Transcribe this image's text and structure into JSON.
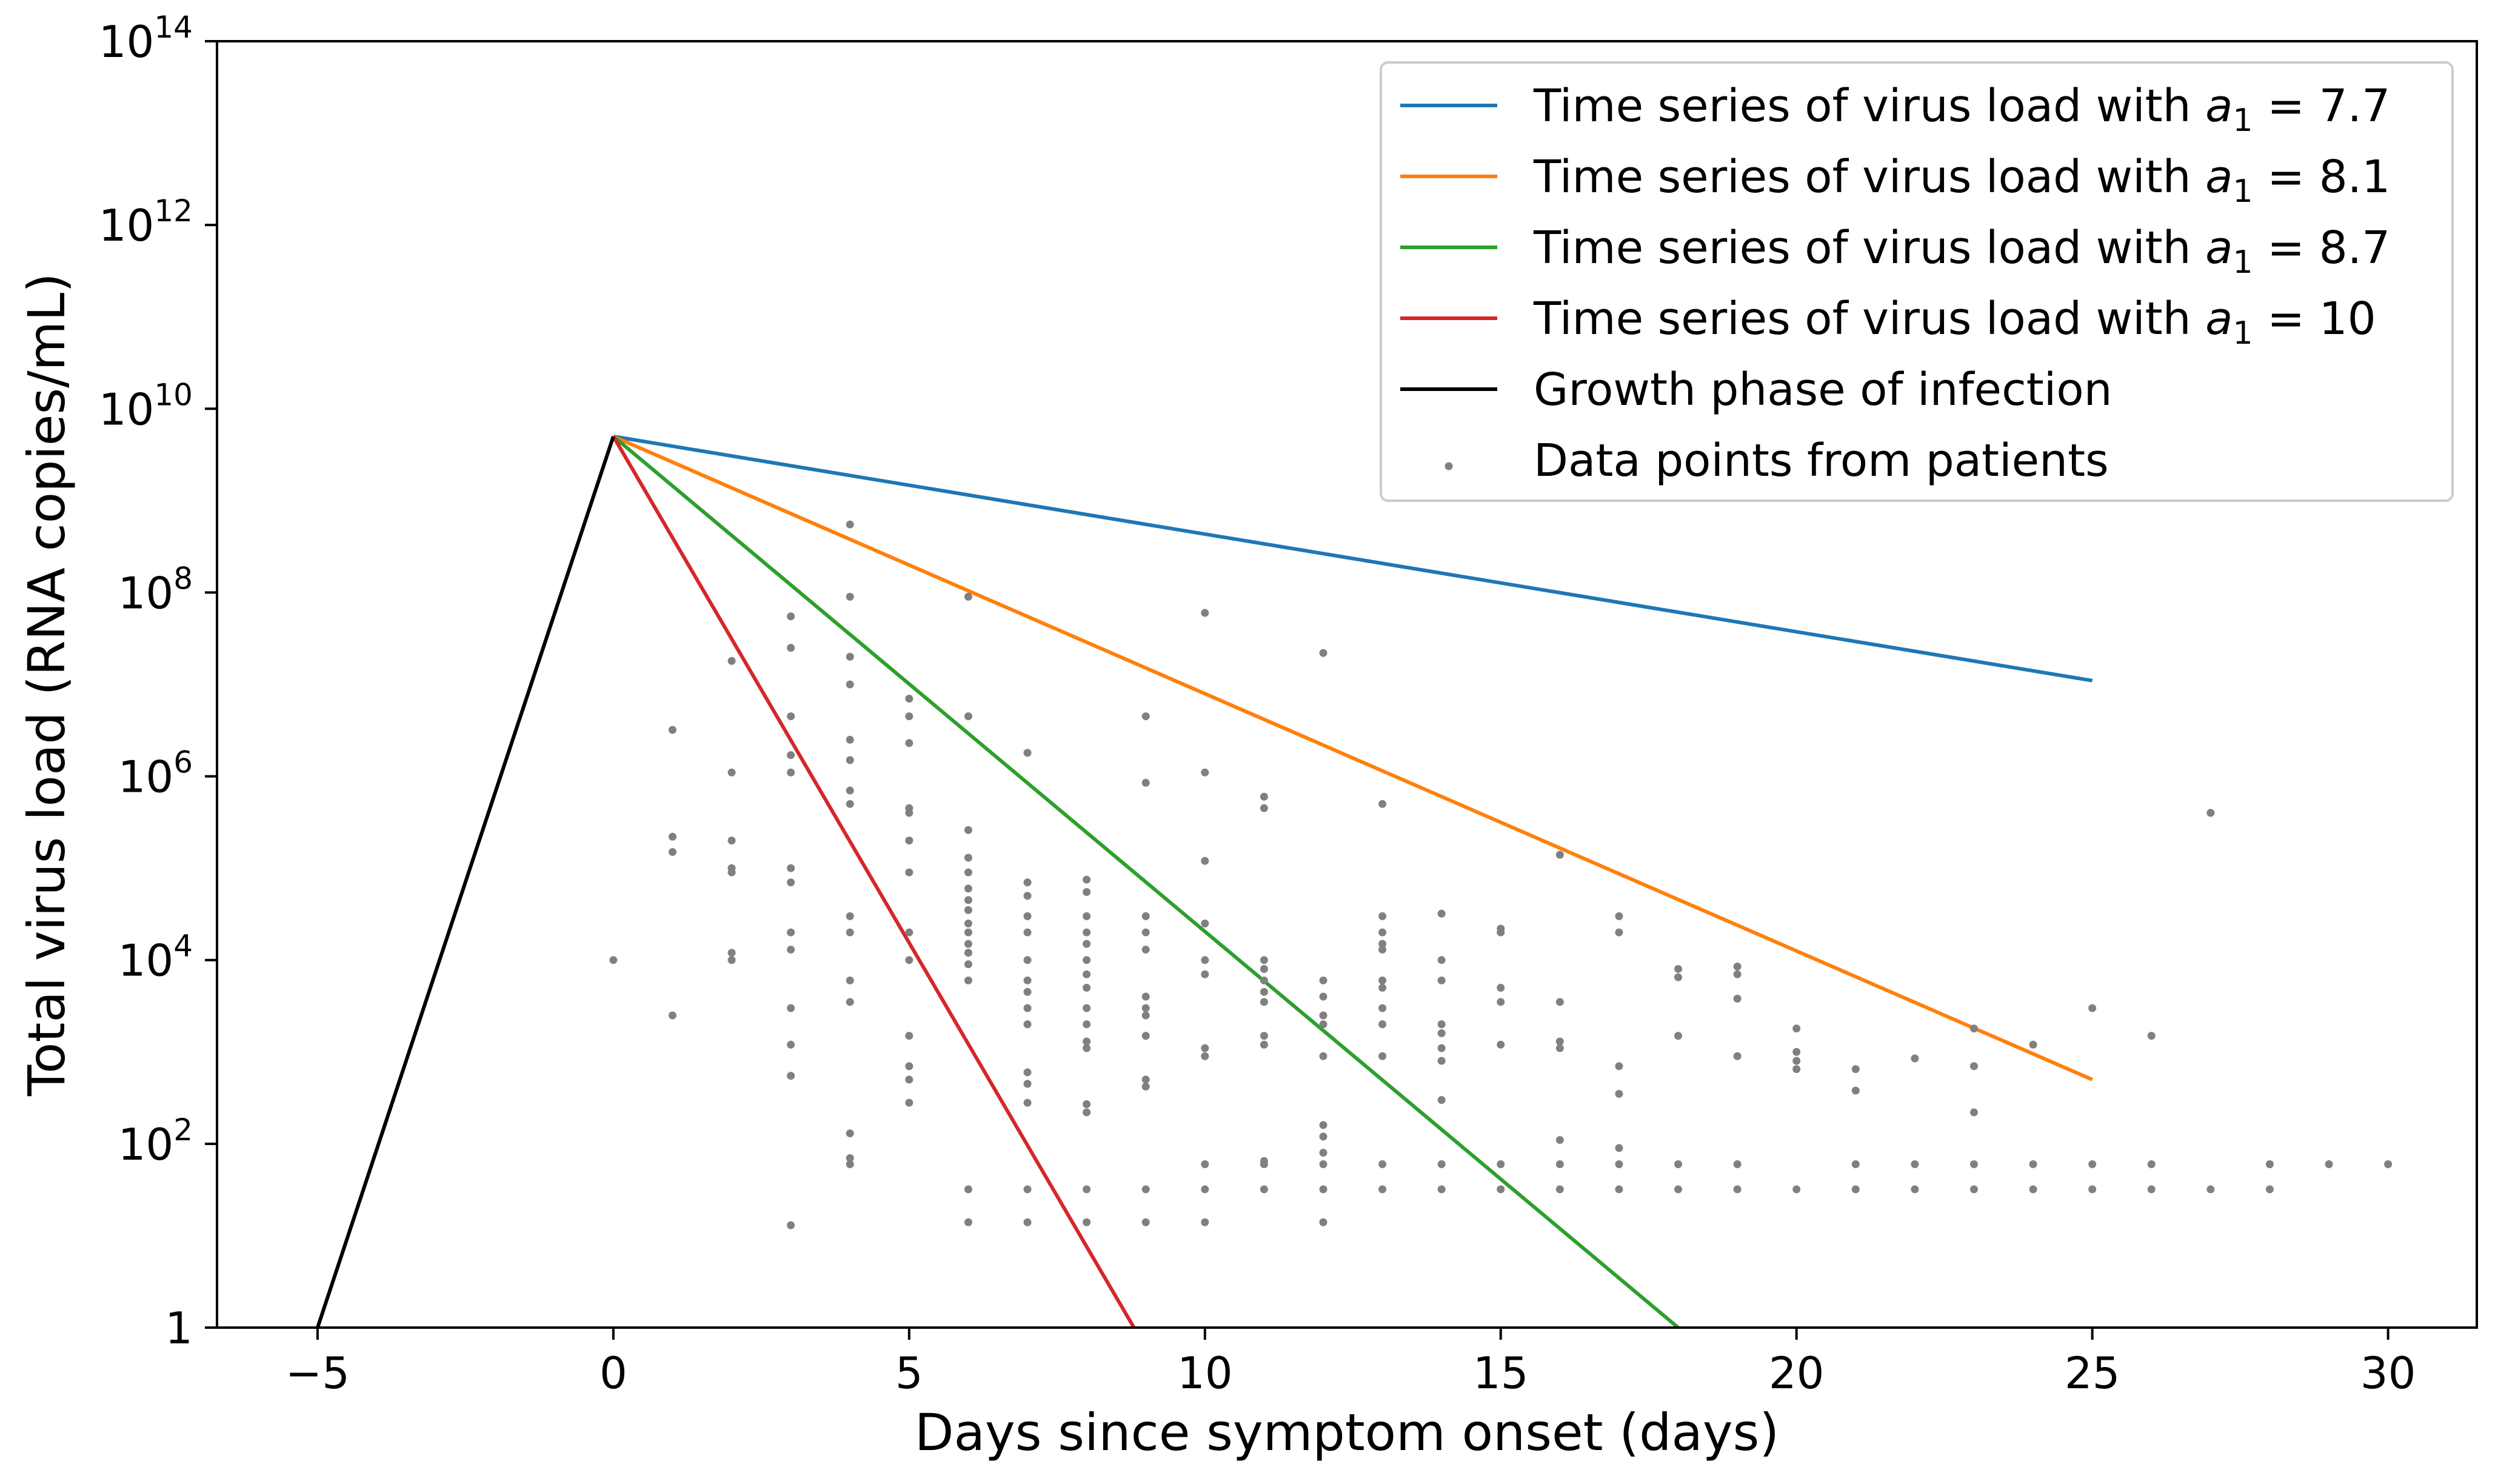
{
  "chart_data": {
    "type": "line",
    "title": "",
    "xlabel": "Days since symptom onset (days)",
    "ylabel": "Total virus load (RNA copies/mL)",
    "xlim": [
      -6.7,
      31.5
    ],
    "ylim": [
      1,
      100000000000000.0
    ],
    "yscale": "log",
    "grid": false,
    "legend_position": "top-right",
    "xticks": [
      -5,
      0,
      5,
      10,
      15,
      20,
      25,
      30
    ],
    "xtick_labels": [
      "−5",
      "0",
      "5",
      "10",
      "15",
      "20",
      "25",
      "30"
    ],
    "ytick_labels": [
      {
        "base": "1",
        "exp": ""
      },
      {
        "base": "10",
        "exp": "2"
      },
      {
        "base": "10",
        "exp": "4"
      },
      {
        "base": "10",
        "exp": "6"
      },
      {
        "base": "10",
        "exp": "8"
      },
      {
        "base": "10",
        "exp": "10"
      },
      {
        "base": "10",
        "exp": "12"
      },
      {
        "base": "10",
        "exp": "14"
      }
    ],
    "series": [
      {
        "name": "Time series of virus load with a1 = 7.7",
        "label_prefix": "Time series of virus load with ",
        "label_var": "a",
        "label_sub": "1",
        "label_suffix": " = 7.7",
        "color": "#1f77b4",
        "kind": "line",
        "x": [
          0,
          25
        ],
        "y": [
          5000000000.0,
          11000000.0
        ]
      },
      {
        "name": "Time series of virus load with a1 = 8.1",
        "label_prefix": "Time series of virus load with ",
        "label_var": "a",
        "label_sub": "1",
        "label_suffix": " = 8.1",
        "color": "#ff7f0e",
        "kind": "line",
        "x": [
          0,
          25
        ],
        "y": [
          5000000000.0,
          500
        ]
      },
      {
        "name": "Time series of virus load with a1 = 8.7",
        "label_prefix": "Time series of virus load with ",
        "label_var": "a",
        "label_sub": "1",
        "label_suffix": " = 8.7",
        "color": "#2ca02c",
        "kind": "line",
        "x": [
          0,
          18
        ],
        "y": [
          5000000000.0,
          1
        ]
      },
      {
        "name": "Time series of virus load with a1 = 10",
        "label_prefix": "Time series of virus load with ",
        "label_var": "a",
        "label_sub": "1",
        "label_suffix": " = 10",
        "color": "#d62728",
        "kind": "line",
        "x": [
          0,
          8.8
        ],
        "y": [
          5000000000.0,
          1
        ]
      },
      {
        "name": "Growth phase of infection",
        "label_prefix": "Growth phase of infection",
        "label_var": "",
        "label_sub": "",
        "label_suffix": "",
        "color": "#000000",
        "kind": "line",
        "x": [
          -5,
          0
        ],
        "y": [
          1,
          5000000000.0
        ]
      },
      {
        "name": "Data points from patients",
        "label_prefix": "Data points from patients",
        "label_var": "",
        "label_sub": "",
        "label_suffix": "",
        "color": "#808080",
        "kind": "scatter",
        "points": [
          [
            0,
            10000
          ],
          [
            1,
            3200000
          ],
          [
            1,
            220000
          ],
          [
            1,
            150000
          ],
          [
            1,
            2500
          ],
          [
            2,
            18000000
          ],
          [
            2,
            1100000
          ],
          [
            2,
            200000
          ],
          [
            2,
            100000
          ],
          [
            2,
            90000
          ],
          [
            2,
            12000
          ],
          [
            2,
            10000
          ],
          [
            3,
            55000000
          ],
          [
            3,
            25000000
          ],
          [
            3,
            4500000
          ],
          [
            3,
            1700000
          ],
          [
            3,
            1100000
          ],
          [
            3,
            100000
          ],
          [
            3,
            70000
          ],
          [
            3,
            20000
          ],
          [
            3,
            13000
          ],
          [
            3,
            3000
          ],
          [
            3,
            1200
          ],
          [
            3,
            550
          ],
          [
            3,
            13
          ],
          [
            4,
            550000000
          ],
          [
            4,
            90000000
          ],
          [
            4,
            20000000
          ],
          [
            4,
            10000000
          ],
          [
            4,
            2500000
          ],
          [
            4,
            1500000
          ],
          [
            4,
            700000
          ],
          [
            4,
            500000
          ],
          [
            4,
            30000
          ],
          [
            4,
            20000
          ],
          [
            4,
            6000
          ],
          [
            4,
            3500
          ],
          [
            4,
            130
          ],
          [
            4,
            70
          ],
          [
            4,
            60
          ],
          [
            5,
            7000000
          ],
          [
            5,
            4500000
          ],
          [
            5,
            2300000
          ],
          [
            5,
            450000
          ],
          [
            5,
            400000
          ],
          [
            5,
            200000
          ],
          [
            5,
            90000
          ],
          [
            5,
            20000
          ],
          [
            5,
            10000
          ],
          [
            5,
            1500
          ],
          [
            5,
            700
          ],
          [
            5,
            500
          ],
          [
            5,
            280
          ],
          [
            6,
            90000000
          ],
          [
            6,
            4500000
          ],
          [
            6,
            260000
          ],
          [
            6,
            130000
          ],
          [
            6,
            90000
          ],
          [
            6,
            60000
          ],
          [
            6,
            45000
          ],
          [
            6,
            35000
          ],
          [
            6,
            25000
          ],
          [
            6,
            20000
          ],
          [
            6,
            15000
          ],
          [
            6,
            12000
          ],
          [
            6,
            9000
          ],
          [
            6,
            6000
          ],
          [
            6,
            32
          ],
          [
            6,
            14
          ],
          [
            7,
            1800000
          ],
          [
            7,
            70000
          ],
          [
            7,
            50000
          ],
          [
            7,
            30000
          ],
          [
            7,
            20000
          ],
          [
            7,
            10000
          ],
          [
            7,
            6000
          ],
          [
            7,
            4500
          ],
          [
            7,
            3000
          ],
          [
            7,
            2000
          ],
          [
            7,
            600
          ],
          [
            7,
            450
          ],
          [
            7,
            280
          ],
          [
            7,
            32
          ],
          [
            7,
            14
          ],
          [
            8,
            75000
          ],
          [
            8,
            55000
          ],
          [
            8,
            30000
          ],
          [
            8,
            20000
          ],
          [
            8,
            15000
          ],
          [
            8,
            10000
          ],
          [
            8,
            7000
          ],
          [
            8,
            5000
          ],
          [
            8,
            3000
          ],
          [
            8,
            2000
          ],
          [
            8,
            1300
          ],
          [
            8,
            1100
          ],
          [
            8,
            270
          ],
          [
            8,
            220
          ],
          [
            8,
            32
          ],
          [
            8,
            14
          ],
          [
            9,
            4500000
          ],
          [
            9,
            850000
          ],
          [
            9,
            30000
          ],
          [
            9,
            20000
          ],
          [
            9,
            13000
          ],
          [
            9,
            4000
          ],
          [
            9,
            3000
          ],
          [
            9,
            2500
          ],
          [
            9,
            1500
          ],
          [
            9,
            500
          ],
          [
            9,
            420
          ],
          [
            9,
            32
          ],
          [
            9,
            14
          ],
          [
            10,
            60000000
          ],
          [
            10,
            1100000
          ],
          [
            10,
            120000
          ],
          [
            10,
            25000
          ],
          [
            10,
            10000
          ],
          [
            10,
            7000
          ],
          [
            10,
            1100
          ],
          [
            10,
            900
          ],
          [
            10,
            60
          ],
          [
            10,
            32
          ],
          [
            10,
            14
          ],
          [
            11,
            600000
          ],
          [
            11,
            450000
          ],
          [
            11,
            10000
          ],
          [
            11,
            8000
          ],
          [
            11,
            6000
          ],
          [
            11,
            4500
          ],
          [
            11,
            3500
          ],
          [
            11,
            1500
          ],
          [
            11,
            1200
          ],
          [
            11,
            65
          ],
          [
            11,
            60
          ],
          [
            11,
            32
          ],
          [
            12,
            22000000
          ],
          [
            12,
            6000
          ],
          [
            12,
            4000
          ],
          [
            12,
            2500
          ],
          [
            12,
            2000
          ],
          [
            12,
            900
          ],
          [
            12,
            160
          ],
          [
            12,
            120
          ],
          [
            12,
            80
          ],
          [
            12,
            60
          ],
          [
            12,
            32
          ],
          [
            12,
            14
          ],
          [
            13,
            500000
          ],
          [
            13,
            30000
          ],
          [
            13,
            20000
          ],
          [
            13,
            15000
          ],
          [
            13,
            13000
          ],
          [
            13,
            6000
          ],
          [
            13,
            5000
          ],
          [
            13,
            3000
          ],
          [
            13,
            2000
          ],
          [
            13,
            900
          ],
          [
            13,
            60
          ],
          [
            13,
            32
          ],
          [
            14,
            32000
          ],
          [
            14,
            10000
          ],
          [
            14,
            6000
          ],
          [
            14,
            2000
          ],
          [
            14,
            1600
          ],
          [
            14,
            1100
          ],
          [
            14,
            800
          ],
          [
            14,
            300
          ],
          [
            14,
            60
          ],
          [
            14,
            32
          ],
          [
            15,
            22000
          ],
          [
            15,
            20000
          ],
          [
            15,
            5000
          ],
          [
            15,
            3500
          ],
          [
            15,
            1200
          ],
          [
            15,
            60
          ],
          [
            15,
            32
          ],
          [
            16,
            140000
          ],
          [
            16,
            3500
          ],
          [
            16,
            1300
          ],
          [
            16,
            1100
          ],
          [
            16,
            110
          ],
          [
            16,
            60
          ],
          [
            16,
            32
          ],
          [
            17,
            30000
          ],
          [
            17,
            20000
          ],
          [
            17,
            700
          ],
          [
            17,
            350
          ],
          [
            17,
            90
          ],
          [
            17,
            60
          ],
          [
            17,
            32
          ],
          [
            18,
            8000
          ],
          [
            18,
            6500
          ],
          [
            18,
            1500
          ],
          [
            18,
            60
          ],
          [
            18,
            32
          ],
          [
            19,
            8500
          ],
          [
            19,
            7000
          ],
          [
            19,
            3800
          ],
          [
            19,
            900
          ],
          [
            19,
            60
          ],
          [
            19,
            32
          ],
          [
            20,
            1800
          ],
          [
            20,
            1000
          ],
          [
            20,
            800
          ],
          [
            20,
            650
          ],
          [
            20,
            32
          ],
          [
            21,
            650
          ],
          [
            21,
            380
          ],
          [
            21,
            60
          ],
          [
            21,
            32
          ],
          [
            22,
            850
          ],
          [
            22,
            60
          ],
          [
            22,
            32
          ],
          [
            23,
            1800
          ],
          [
            23,
            700
          ],
          [
            23,
            220
          ],
          [
            23,
            60
          ],
          [
            23,
            32
          ],
          [
            24,
            1200
          ],
          [
            24,
            60
          ],
          [
            24,
            32
          ],
          [
            25,
            3000
          ],
          [
            25,
            60
          ],
          [
            25,
            32
          ],
          [
            26,
            1500
          ],
          [
            26,
            60
          ],
          [
            26,
            32
          ],
          [
            27,
            400000
          ],
          [
            27,
            32
          ],
          [
            28,
            60
          ],
          [
            28,
            32
          ],
          [
            29,
            60
          ],
          [
            30,
            60
          ]
        ]
      }
    ]
  }
}
